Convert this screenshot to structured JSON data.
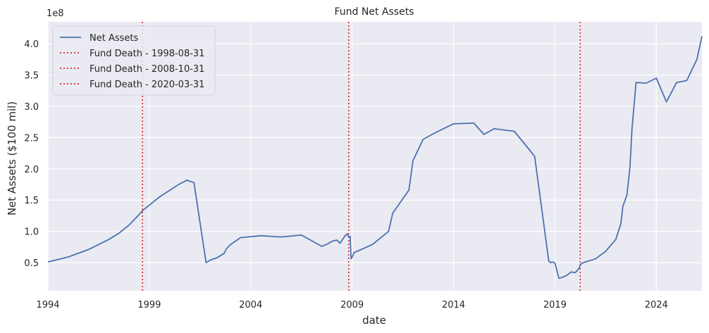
{
  "chart_data": {
    "type": "line",
    "title": "Fund Net Assets",
    "xlabel": "date",
    "ylabel": "Net Assets ($100 mil)",
    "y_offset_label": "1e8",
    "xlim": [
      1994.0,
      2026.25
    ],
    "ylim": [
      5000000.0,
      435000000.0
    ],
    "x_ticks": [
      1994,
      1999,
      2004,
      2009,
      2014,
      2019,
      2024
    ],
    "x_tick_labels": [
      "1994",
      "1999",
      "2004",
      "2009",
      "2014",
      "2019",
      "2024"
    ],
    "y_ticks": [
      50000000.0,
      100000000.0,
      150000000.0,
      200000000.0,
      250000000.0,
      300000000.0,
      350000000.0,
      400000000.0
    ],
    "y_tick_labels": [
      "0.5",
      "1.0",
      "1.5",
      "2.0",
      "2.5",
      "3.0",
      "3.5",
      "4.0"
    ],
    "grid": true,
    "legend_position": "top-left",
    "colors": {
      "background": "#eaeaf2",
      "grid": "#ffffff",
      "line": "#4c72b0",
      "marker": "#d62728"
    },
    "series": [
      {
        "name": "Net Assets",
        "x": [
          1994.0,
          1995.0,
          1996.0,
          1997.0,
          1997.5,
          1998.0,
          1998.5,
          1998.58,
          1998.66,
          1999.5,
          2000.5,
          2000.7,
          2000.85,
          2001.0,
          2001.2,
          2001.8,
          2002.0,
          2002.35,
          2002.7,
          2002.8,
          2002.95,
          2003.05,
          2003.5,
          2004.5,
          2005.5,
          2006.5,
          2007.5,
          2007.8,
          2008.0,
          2008.25,
          2008.4,
          2008.55,
          2008.65,
          2008.72,
          2008.76,
          2008.83,
          2008.9,
          2008.95,
          2009.0,
          2009.1,
          2010.0,
          2010.8,
          2011.0,
          2011.8,
          2012.0,
          2012.5,
          2013.0,
          2014.0,
          2015.0,
          2015.5,
          2016.0,
          2017.0,
          2018.0,
          2018.7,
          2018.8,
          2018.9,
          2019.0,
          2019.2,
          2019.4,
          2019.6,
          2019.8,
          2020.0,
          2020.12,
          2020.22,
          2020.25,
          2020.4,
          2021.0,
          2021.5,
          2022.0,
          2022.25,
          2022.35,
          2022.45,
          2022.55,
          2022.7,
          2022.8,
          2023.0,
          2023.5,
          2024.0,
          2024.5,
          2025.0,
          2025.5,
          2026.0,
          2026.25
        ],
        "y": [
          51000000.0,
          59000000.0,
          71000000.0,
          87000000.0,
          97000000.0,
          110000000.0,
          127000000.0,
          130000000.0,
          133000000.0,
          155000000.0,
          176000000.0,
          179000000.0,
          182000000.0,
          180000000.0,
          178000000.0,
          50000000.0,
          54000000.0,
          58000000.0,
          65000000.0,
          72000000.0,
          77000000.0,
          80000000.0,
          90000000.0,
          93000000.0,
          91000000.0,
          94000000.0,
          76000000.0,
          80000000.0,
          84000000.0,
          86000000.0,
          81000000.0,
          88000000.0,
          93000000.0,
          95000000.0,
          96000000.0,
          91000000.0,
          92000000.0,
          56000000.0,
          59000000.0,
          66000000.0,
          79000000.0,
          100000000.0,
          129000000.0,
          166000000.0,
          213000000.0,
          247000000.0,
          256000000.0,
          272000000.0,
          273000000.0,
          255000000.0,
          264000000.0,
          260000000.0,
          220000000.0,
          52000000.0,
          50000000.0,
          51000000.0,
          49000000.0,
          25000000.0,
          27000000.0,
          30000000.0,
          35000000.0,
          34000000.0,
          38000000.0,
          43000000.0,
          47000000.0,
          50000000.0,
          56000000.0,
          68000000.0,
          87000000.0,
          112000000.0,
          140000000.0,
          149000000.0,
          158000000.0,
          202000000.0,
          263000000.0,
          338000000.0,
          337000000.0,
          345000000.0,
          307000000.0,
          338000000.0,
          341000000.0,
          375000000.0,
          412000000.0
        ]
      }
    ],
    "vlines": [
      {
        "name": "Fund Death - 1998-08-31",
        "x": 1998.664
      },
      {
        "name": "Fund Death - 2008-10-31",
        "x": 2008.83
      },
      {
        "name": "Fund Death - 2020-03-31",
        "x": 2020.247
      }
    ]
  }
}
